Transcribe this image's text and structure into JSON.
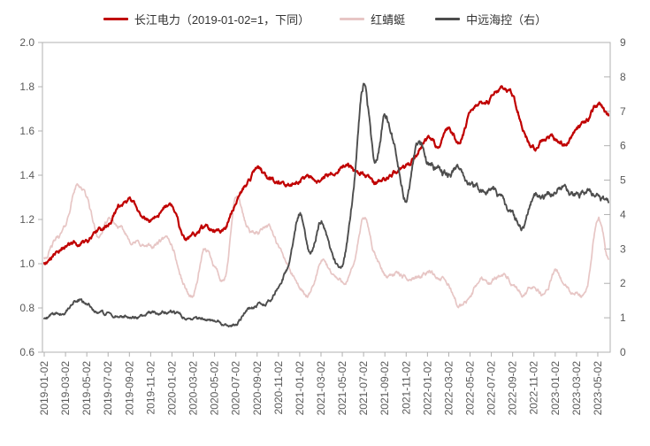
{
  "chart_data": {
    "type": "line",
    "title": "",
    "grid": false,
    "legend_position": "top",
    "colors": {
      "red": "#c00000",
      "pink": "#e7c6c5",
      "gray": "#4d4d4d",
      "axis": "#b0b0b0",
      "tick_text": "#595959",
      "legend_text": "#333333"
    },
    "legend": [
      {
        "label": "长江电力（2019-01-02=1，下同）",
        "color": "#c00000"
      },
      {
        "label": "红蜻蜓",
        "color": "#e7c6c5"
      },
      {
        "label": "中远海控（右）",
        "color": "#4d4d4d"
      }
    ],
    "left_axis": {
      "min": 0.6,
      "max": 2.0,
      "ticks": [
        "0.6",
        "0.8",
        "1.0",
        "1.2",
        "1.4",
        "1.6",
        "1.8",
        "2.0"
      ]
    },
    "right_axis": {
      "min": 0,
      "max": 9,
      "ticks": [
        "0",
        "1",
        "2",
        "3",
        "4",
        "5",
        "6",
        "7",
        "8",
        "9"
      ]
    },
    "x_tick_labels": [
      "2019-01-02",
      "2019-03-02",
      "2019-05-02",
      "2019-07-02",
      "2019-09-02",
      "2019-11-02",
      "2020-01-02",
      "2020-03-02",
      "2020-05-02",
      "2020-07-02",
      "2020-09-02",
      "2020-11-02",
      "2021-01-02",
      "2021-03-02",
      "2021-05-02",
      "2021-07-02",
      "2021-09-02",
      "2021-11-02",
      "2022-01-02",
      "2022-03-02",
      "2022-05-02",
      "2022-07-02",
      "2022-09-02",
      "2022-11-02",
      "2023-01-02",
      "2023-03-02",
      "2023-05-02"
    ],
    "months": [
      "2019-01",
      "2019-02",
      "2019-03",
      "2019-04",
      "2019-05",
      "2019-06",
      "2019-07",
      "2019-08",
      "2019-09",
      "2019-10",
      "2019-11",
      "2019-12",
      "2020-01",
      "2020-02",
      "2020-03",
      "2020-04",
      "2020-05",
      "2020-06",
      "2020-07",
      "2020-08",
      "2020-09",
      "2020-10",
      "2020-11",
      "2020-12",
      "2021-01",
      "2021-02",
      "2021-03",
      "2021-04",
      "2021-05",
      "2021-06",
      "2021-07",
      "2021-08",
      "2021-09",
      "2021-10",
      "2021-11",
      "2021-12",
      "2022-01",
      "2022-02",
      "2022-03",
      "2022-04",
      "2022-05",
      "2022-06",
      "2022-07",
      "2022-08",
      "2022-09",
      "2022-10",
      "2022-11",
      "2022-12",
      "2023-01",
      "2023-02",
      "2023-03",
      "2023-04",
      "2023-05",
      "2023-06"
    ],
    "series": [
      {
        "name": "长江电力（2019-01-02=1，下同）",
        "axis": "left",
        "color": "#c00000",
        "width": 2.2,
        "values": [
          1.0,
          1.05,
          1.08,
          1.09,
          1.11,
          1.14,
          1.17,
          1.25,
          1.28,
          1.23,
          1.2,
          1.24,
          1.26,
          1.12,
          1.13,
          1.16,
          1.16,
          1.18,
          1.28,
          1.36,
          1.42,
          1.38,
          1.36,
          1.35,
          1.38,
          1.4,
          1.37,
          1.42,
          1.45,
          1.42,
          1.41,
          1.36,
          1.38,
          1.42,
          1.43,
          1.5,
          1.57,
          1.53,
          1.6,
          1.55,
          1.67,
          1.72,
          1.75,
          1.79,
          1.77,
          1.62,
          1.52,
          1.55,
          1.56,
          1.54,
          1.6,
          1.65,
          1.72,
          1.67
        ]
      },
      {
        "name": "红蜻蜓",
        "axis": "left",
        "color": "#e7c6c5",
        "width": 1.7,
        "values": [
          1.03,
          1.1,
          1.17,
          1.35,
          1.3,
          1.13,
          1.19,
          1.16,
          1.11,
          1.09,
          1.07,
          1.1,
          1.08,
          0.92,
          0.86,
          1.05,
          1.0,
          0.93,
          1.3,
          1.17,
          1.14,
          1.18,
          1.07,
          0.98,
          0.89,
          0.86,
          1.0,
          0.96,
          0.92,
          0.98,
          1.2,
          1.05,
          0.95,
          0.96,
          0.93,
          0.94,
          0.97,
          0.94,
          0.9,
          0.81,
          0.85,
          0.93,
          0.92,
          0.96,
          0.9,
          0.85,
          0.9,
          0.86,
          0.96,
          0.89,
          0.86,
          0.88,
          1.21,
          1.02
        ]
      },
      {
        "name": "中远海控（右）",
        "axis": "right",
        "color": "#4d4d4d",
        "width": 1.9,
        "values": [
          1.0,
          1.1,
          1.2,
          1.5,
          1.35,
          1.15,
          1.1,
          1.05,
          1.05,
          1.0,
          1.1,
          1.15,
          1.25,
          1.05,
          1.0,
          0.95,
          0.9,
          0.82,
          0.85,
          1.15,
          1.4,
          1.5,
          1.9,
          2.6,
          4.1,
          2.9,
          3.85,
          2.9,
          2.55,
          4.6,
          7.9,
          5.6,
          6.9,
          5.9,
          4.55,
          6.05,
          5.5,
          5.3,
          5.1,
          5.3,
          4.85,
          4.75,
          4.7,
          4.35,
          3.95,
          3.65,
          4.5,
          4.45,
          4.65,
          4.75,
          4.6,
          4.65,
          4.45,
          4.35
        ]
      }
    ]
  }
}
